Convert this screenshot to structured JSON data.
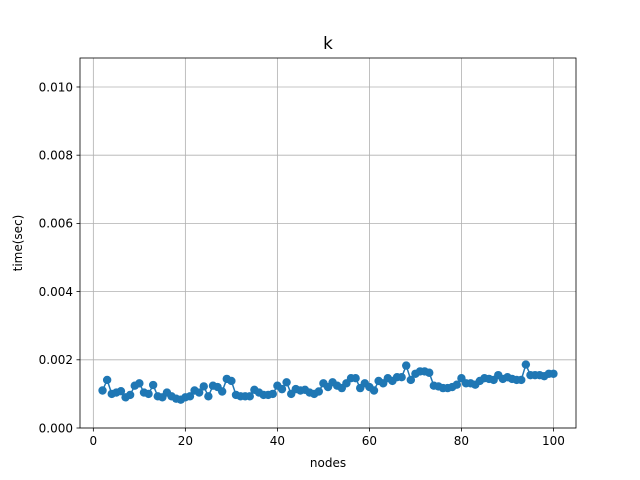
{
  "chart_data": {
    "type": "line",
    "title": "k",
    "xlabel": "nodes",
    "ylabel": "time(sec)",
    "xlim": [
      -2.9,
      104.9
    ],
    "ylim": [
      0,
      0.01085
    ],
    "xticks": [
      0,
      20,
      40,
      60,
      80,
      100
    ],
    "xtick_labels": [
      "0",
      "20",
      "40",
      "60",
      "80",
      "100"
    ],
    "yticks": [
      0.0,
      0.002,
      0.004,
      0.006,
      0.008,
      0.01
    ],
    "ytick_labels": [
      "0.000",
      "0.002",
      "0.004",
      "0.006",
      "0.008",
      "0.010"
    ],
    "grid": true,
    "color": "#1f77b4",
    "marker": "circle",
    "series": [
      {
        "x": [
          2,
          3,
          4,
          5,
          6,
          7,
          8,
          9,
          10,
          11,
          12,
          13,
          14,
          15,
          16,
          17,
          18,
          19,
          20,
          21,
          22,
          23,
          24,
          25,
          26,
          27,
          28,
          29,
          30,
          31,
          32,
          33,
          34,
          35,
          36,
          37,
          38,
          39,
          40,
          41,
          42,
          43,
          44,
          45,
          46,
          47,
          48,
          49,
          50,
          51,
          52,
          53,
          54,
          55,
          56,
          57,
          58,
          59,
          60,
          61,
          62,
          63,
          64,
          65,
          66,
          67,
          68,
          69,
          70,
          71,
          72,
          73,
          74,
          75,
          76,
          77,
          78,
          79,
          80,
          81,
          82,
          83,
          84,
          85,
          86,
          87,
          88,
          89,
          90,
          91,
          92,
          93,
          94,
          95,
          96,
          97,
          98,
          99,
          100
        ],
        "y": [
          0.0011,
          0.00141,
          0.001,
          0.00104,
          0.00108,
          0.0009,
          0.00097,
          0.00124,
          0.00131,
          0.00104,
          0.001,
          0.00126,
          0.00093,
          0.0009,
          0.00104,
          0.00093,
          0.00086,
          0.00083,
          0.0009,
          0.00093,
          0.0011,
          0.00104,
          0.00122,
          0.00093,
          0.00124,
          0.0012,
          0.00107,
          0.00144,
          0.00138,
          0.00097,
          0.00093,
          0.00093,
          0.00093,
          0.00112,
          0.00104,
          0.00097,
          0.00097,
          0.001,
          0.00124,
          0.00114,
          0.00134,
          0.001,
          0.00114,
          0.0011,
          0.00112,
          0.00104,
          0.001,
          0.00107,
          0.00131,
          0.0012,
          0.00134,
          0.00124,
          0.00117,
          0.00131,
          0.00146,
          0.00146,
          0.00117,
          0.00131,
          0.0012,
          0.0011,
          0.00138,
          0.00131,
          0.00146,
          0.00138,
          0.00149,
          0.00149,
          0.00183,
          0.00141,
          0.00159,
          0.00166,
          0.00166,
          0.00162,
          0.00124,
          0.00122,
          0.00117,
          0.00117,
          0.0012,
          0.00127,
          0.00146,
          0.00131,
          0.00131,
          0.00127,
          0.00138,
          0.00146,
          0.00144,
          0.00141,
          0.00155,
          0.00144,
          0.00149,
          0.00144,
          0.00141,
          0.00141,
          0.00186,
          0.00155,
          0.00155,
          0.00155,
          0.00152,
          0.00159,
          0.00159
        ]
      }
    ]
  }
}
